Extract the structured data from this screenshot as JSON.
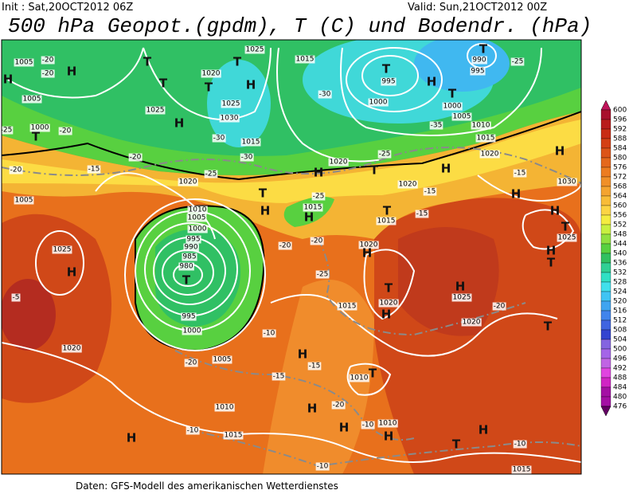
{
  "header": {
    "init": "Init : Sat,20OCT2012 06Z",
    "valid": "Valid: Sun,21OCT2012 00Z",
    "title": "500 hPa Geopot.(gpdm), T (C) und Bodendr. (hPa)"
  },
  "colorbar": {
    "ticks": [
      600,
      596,
      592,
      588,
      584,
      580,
      576,
      572,
      568,
      564,
      560,
      556,
      552,
      548,
      544,
      540,
      536,
      532,
      528,
      524,
      520,
      516,
      512,
      508,
      504,
      500,
      496,
      492,
      488,
      484,
      480,
      476
    ],
    "colors": [
      "#c0145a",
      "#a8102c",
      "#b81c1c",
      "#c82c14",
      "#d44014",
      "#dc5418",
      "#e4681c",
      "#ec7c20",
      "#f09028",
      "#f4a430",
      "#f8bc38",
      "#fcd444",
      "#f4ec40",
      "#c8f040",
      "#90e040",
      "#58d040",
      "#30c060",
      "#30d094",
      "#30e0c4",
      "#40e0ec",
      "#40c4f4",
      "#40a4f0",
      "#4084ec",
      "#4064e0",
      "#3444d0",
      "#8464e0",
      "#a464e8",
      "#c064e4",
      "#e044e0",
      "#d024c4",
      "#a410a4",
      "#640064"
    ]
  },
  "map": {
    "labels": [
      "1005",
      "-20",
      "-20",
      "1005",
      "1000",
      "T",
      "-20",
      "H",
      "T",
      "T",
      "1025",
      "H",
      "1020",
      "T",
      "1025",
      "1030",
      "H",
      "1025",
      "T",
      "1015",
      "-30",
      "1015",
      "-30",
      "-25",
      "1020",
      "1020",
      "H",
      "T",
      "995",
      "1000",
      "T",
      "H",
      "T",
      "1000",
      "990",
      "995",
      "T",
      "-25",
      "1005",
      "1010",
      "1015",
      "1020",
      "-30",
      "-35",
      "-25",
      "H",
      "H",
      "1030",
      "H",
      "H",
      "T",
      "1025",
      "H",
      "T",
      "H",
      "1025",
      "T",
      "1020",
      "H",
      "1020",
      "-20",
      "T",
      "1010",
      "1005",
      "1000",
      "995",
      "990",
      "985",
      "980",
      "T",
      "995",
      "1000",
      "1005",
      "-20",
      "1015",
      "H",
      "T",
      "H",
      "-25",
      "-20",
      "-20",
      "-25",
      "1015",
      "1020",
      "H",
      "T",
      "1015",
      "-15",
      "-15",
      "1020",
      "-15",
      "1025",
      "H",
      "-5",
      "1020",
      "-20",
      "1005",
      "-25",
      "-15",
      "-20",
      "H",
      "-15",
      "-15",
      "T",
      "1010",
      "-10",
      "-20",
      "1010",
      "-10",
      "1015",
      "H",
      "H",
      "H",
      "-10",
      "1010",
      "H",
      "T",
      "H",
      "-10",
      "1015",
      "-10",
      "H"
    ]
  },
  "footer": "Daten: GFS-Modell des amerikanischen Wetterdienstes"
}
